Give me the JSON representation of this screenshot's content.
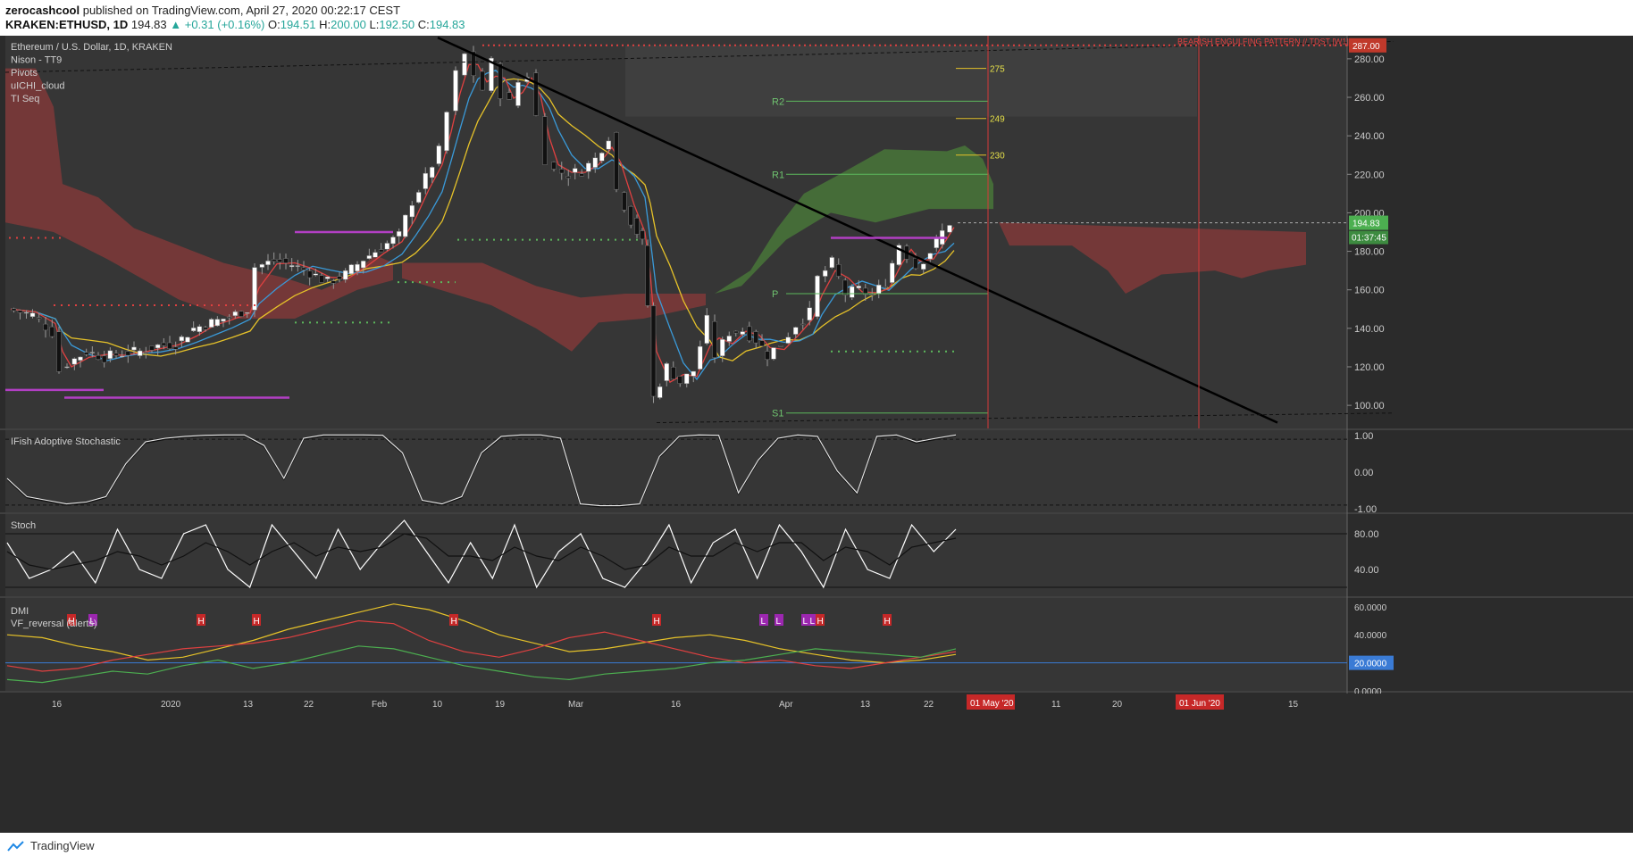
{
  "header": {
    "publisher": "zerocashcool",
    "published_text": "published on TradingView.com, April 27, 2020 00:22:17 CEST",
    "symbol_line": "KRAKEN:ETHUSD, 1D",
    "last": "194.83",
    "change": "+0.31 (+0.16%)",
    "o_label": "O:",
    "o": "194.51",
    "h_label": "H:",
    "h": "200.00",
    "l_label": "L:",
    "l": "192.50",
    "c_label": "C:",
    "c": "194.83"
  },
  "legend": [
    "Ethereum / U.S. Dollar, 1D, KRAKEN",
    "Nison - TT9",
    "Pivots",
    "uICHI_cloud",
    "TI Seq"
  ],
  "pane_labels": {
    "ifish": "IFish Adoptive Stochastic",
    "stoch": "Stoch",
    "dmi": "DMI",
    "vf": "VF_reversal (alerts)"
  },
  "annotations": {
    "bearish": "BEARISH ENGULFING PATTERN // TDST [W1]",
    "price_tag": "287.00",
    "current_price": "194.83",
    "countdown": "01:37:45",
    "levels": [
      {
        "label": "R2",
        "value": 258
      },
      {
        "label": "R1",
        "value": 220
      },
      {
        "label": "P",
        "value": 158
      },
      {
        "label": "S1",
        "value": 96
      }
    ],
    "targets": [
      "275",
      "249",
      "230"
    ],
    "date_markers": [
      "01 May '20",
      "01 Jun '20"
    ]
  },
  "chart_data": [
    {
      "type": "candlestick",
      "title": "Ethereum / U.S. Dollar, 1D, KRAKEN",
      "ylim": [
        88,
        292
      ],
      "y_ticks": [
        "280.00",
        "260.00",
        "240.00",
        "220.00",
        "200.00",
        "180.00",
        "160.00",
        "140.00",
        "120.00",
        "100.00"
      ],
      "x_ticks": [
        "16",
        "2020",
        "13",
        "22",
        "Feb",
        "10",
        "19",
        "Mar",
        "16",
        "Apr",
        "13",
        "22",
        "11",
        "20",
        "15"
      ],
      "close_path": [
        [
          12,
          150
        ],
        [
          40,
          147
        ],
        [
          62,
          138
        ],
        [
          70,
          118
        ],
        [
          80,
          122
        ],
        [
          100,
          128
        ],
        [
          120,
          125
        ],
        [
          140,
          127
        ],
        [
          160,
          128
        ],
        [
          180,
          131
        ],
        [
          200,
          132
        ],
        [
          220,
          140
        ],
        [
          240,
          143
        ],
        [
          260,
          146
        ],
        [
          280,
          150
        ],
        [
          290,
          172
        ],
        [
          310,
          175
        ],
        [
          330,
          173
        ],
        [
          350,
          169
        ],
        [
          370,
          164
        ],
        [
          390,
          168
        ],
        [
          410,
          176
        ],
        [
          430,
          182
        ],
        [
          450,
          188
        ],
        [
          465,
          206
        ],
        [
          480,
          218
        ],
        [
          495,
          232
        ],
        [
          505,
          252
        ],
        [
          515,
          272
        ],
        [
          525,
          282
        ],
        [
          535,
          272
        ],
        [
          545,
          264
        ],
        [
          555,
          278
        ],
        [
          565,
          262
        ],
        [
          575,
          257
        ],
        [
          585,
          268
        ],
        [
          595,
          272
        ],
        [
          605,
          250
        ],
        [
          615,
          228
        ],
        [
          625,
          222
        ],
        [
          640,
          220
        ],
        [
          655,
          222
        ],
        [
          670,
          228
        ],
        [
          685,
          240
        ],
        [
          695,
          212
        ],
        [
          710,
          196
        ],
        [
          722,
          184
        ],
        [
          728,
          152
        ],
        [
          735,
          104
        ],
        [
          750,
          120
        ],
        [
          765,
          112
        ],
        [
          780,
          118
        ],
        [
          795,
          144
        ],
        [
          805,
          126
        ],
        [
          820,
          138
        ],
        [
          835,
          139
        ],
        [
          850,
          134
        ],
        [
          862,
          126
        ],
        [
          878,
          132
        ],
        [
          895,
          142
        ],
        [
          910,
          148
        ],
        [
          920,
          166
        ],
        [
          935,
          174
        ],
        [
          950,
          158
        ],
        [
          965,
          160
        ],
        [
          980,
          157
        ],
        [
          995,
          164
        ],
        [
          1010,
          184
        ],
        [
          1020,
          178
        ],
        [
          1030,
          172
        ],
        [
          1045,
          180
        ],
        [
          1058,
          190
        ],
        [
          1068,
          195
        ]
      ],
      "wedge_points": [
        [
          12,
          150
        ],
        [
          70,
          118
        ],
        [
          140,
          127
        ],
        [
          240,
          143
        ],
        [
          290,
          172
        ],
        [
          370,
          164
        ],
        [
          450,
          188
        ],
        [
          525,
          282
        ],
        [
          575,
          257
        ],
        [
          640,
          220
        ],
        [
          685,
          240
        ],
        [
          735,
          104
        ],
        [
          795,
          144
        ],
        [
          862,
          126
        ],
        [
          935,
          174
        ],
        [
          980,
          157
        ],
        [
          1068,
          195
        ]
      ],
      "trend_line": [
        [
          490,
          291
        ],
        [
          1430,
          91
        ]
      ]
    },
    {
      "type": "line",
      "title": "IFish Adoptive Stochastic",
      "ylim": [
        -1.1,
        1.1
      ],
      "y_ticks": [
        "1.00",
        "0.00",
        "-1.00"
      ],
      "series": [
        {
          "values": [
            -0.2,
            -0.7,
            -0.8,
            -0.9,
            -0.85,
            -0.7,
            0.2,
            0.8,
            0.9,
            0.95,
            0.98,
            0.99,
            1.0,
            0.7,
            -0.2,
            0.9,
            0.99,
            1.0,
            1.0,
            0.98,
            0.5,
            -0.8,
            -0.9,
            -0.7,
            0.5,
            0.95,
            1.0,
            1.0,
            0.9,
            -0.9,
            -0.95,
            -0.95,
            -0.9,
            0.4,
            0.95,
            1.0,
            0.98,
            -0.6,
            0.3,
            0.9,
            1.0,
            0.95,
            0.0,
            -0.6,
            0.95,
            1.0,
            0.8,
            0.9,
            1.0
          ]
        }
      ]
    },
    {
      "type": "line",
      "title": "Stoch",
      "ylim": [
        10,
        100
      ],
      "y_ticks": [
        "80.00",
        "40.00"
      ],
      "series": [
        {
          "values": [
            70,
            30,
            40,
            60,
            25,
            85,
            40,
            30,
            80,
            90,
            40,
            20,
            90,
            60,
            30,
            85,
            40,
            70,
            95,
            60,
            25,
            70,
            30,
            90,
            20,
            60,
            80,
            30,
            20,
            50,
            90,
            25,
            70,
            85,
            30,
            90,
            60,
            20,
            85,
            40,
            30,
            90,
            60,
            85
          ]
        },
        {
          "values": [
            60,
            45,
            40,
            45,
            50,
            60,
            55,
            45,
            55,
            70,
            60,
            45,
            60,
            70,
            55,
            65,
            60,
            65,
            80,
            75,
            55,
            55,
            50,
            65,
            55,
            50,
            65,
            55,
            40,
            45,
            65,
            55,
            55,
            70,
            60,
            70,
            70,
            50,
            65,
            60,
            45,
            65,
            70,
            75
          ]
        }
      ]
    },
    {
      "type": "line",
      "title": "DMI",
      "ylim": [
        0,
        65
      ],
      "y_ticks": [
        "60.0000",
        "40.0000",
        "20.0000",
        "0.0000"
      ],
      "markers": [
        "H",
        "L",
        "H",
        "H",
        "H",
        "H",
        "L",
        "L",
        "L",
        "L",
        "H",
        "H"
      ],
      "series": [
        {
          "values": [
            40,
            38,
            32,
            28,
            22,
            24,
            30,
            36,
            44,
            50,
            56,
            62,
            58,
            50,
            40,
            34,
            28,
            30,
            34,
            38,
            40,
            36,
            30,
            26,
            22,
            20,
            22,
            26
          ]
        },
        {
          "values": [
            18,
            14,
            16,
            22,
            26,
            30,
            32,
            34,
            38,
            44,
            50,
            48,
            36,
            28,
            24,
            30,
            38,
            42,
            36,
            30,
            24,
            20,
            22,
            18,
            16,
            20,
            24,
            28
          ]
        },
        {
          "values": [
            8,
            6,
            10,
            14,
            12,
            18,
            22,
            16,
            20,
            26,
            32,
            30,
            24,
            18,
            14,
            10,
            8,
            12,
            14,
            16,
            20,
            22,
            26,
            30,
            28,
            26,
            24,
            30
          ]
        }
      ]
    }
  ]
}
